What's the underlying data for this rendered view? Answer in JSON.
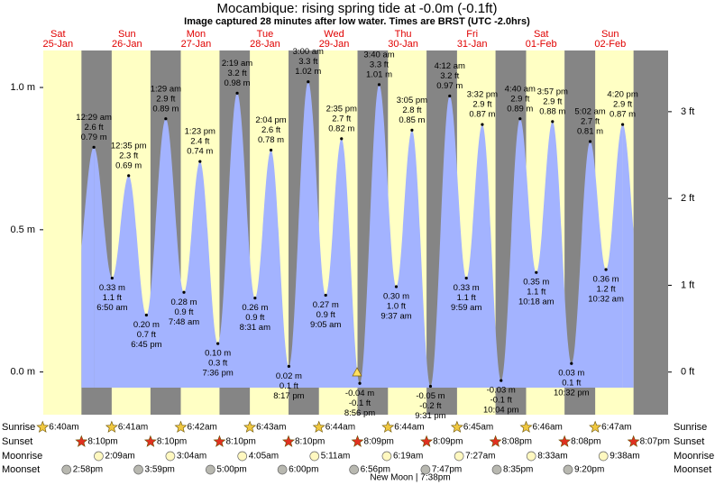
{
  "chart_data": {
    "type": "area",
    "title": "Mocambique: rising  spring tide at -0.0m (-0.1ft)",
    "subtitle": "Image captured 28 minutes after low water. Times are BRST (UTC -2.0hrs)",
    "ylim": [
      -0.15,
      1.13
    ],
    "yticks": [
      {
        "value": 0,
        "label": "0.0 m"
      },
      {
        "value": 0.5,
        "label": "0.5 m"
      },
      {
        "value": 1,
        "label": "1.0 m"
      }
    ],
    "y2lim": [
      -0.491,
      3.705
    ],
    "y2ticks": [
      {
        "value": 0,
        "label": "0 ft"
      },
      {
        "value": 1,
        "label": "1 ft"
      },
      {
        "value": 2,
        "label": "2 ft"
      },
      {
        "value": 3,
        "label": "3 ft"
      }
    ],
    "color": "#a3b3ff",
    "day_color": "#ffffc4",
    "night_color": "#858585",
    "row_labels": {
      "sunrise": "Sunrise",
      "sunset": "Sunset",
      "moonrise": "Moonrise",
      "moonset": "Moonset"
    },
    "new_moon": "New Moon | 7:38pm",
    "days": [
      {
        "weekday": "Sat",
        "date": "25-Jan",
        "sunrise": "6:40am",
        "sunset": "8:10pm",
        "moonrise": null,
        "moonset": "2:58pm",
        "tides": []
      },
      {
        "weekday": "Sun",
        "date": "26-Jan",
        "sunrise": "6:41am",
        "sunset": "8:10pm",
        "moonrise": "2:09am",
        "moonset": "3:59pm",
        "tides": [
          {
            "time": "12:29 am",
            "height_m": 0.79,
            "label_m": "0.79 m",
            "label_ft": "2.6 ft"
          },
          {
            "time": "6:50 am",
            "height_m": 0.33,
            "label_m": "0.33 m",
            "label_ft": "1.1 ft"
          },
          {
            "time": "12:35 pm",
            "height_m": 0.69,
            "label_m": "0.69 m",
            "label_ft": "2.3 ft"
          },
          {
            "time": "6:45 pm",
            "height_m": 0.2,
            "label_m": "0.20 m",
            "label_ft": "0.7 ft"
          }
        ]
      },
      {
        "weekday": "Mon",
        "date": "27-Jan",
        "sunrise": "6:42am",
        "sunset": "8:10pm",
        "moonrise": "3:04am",
        "moonset": "5:00pm",
        "tides": [
          {
            "time": "1:29 am",
            "height_m": 0.89,
            "label_m": "0.89 m",
            "label_ft": "2.9 ft"
          },
          {
            "time": "7:48 am",
            "height_m": 0.28,
            "label_m": "0.28 m",
            "label_ft": "0.9 ft"
          },
          {
            "time": "1:23 pm",
            "height_m": 0.74,
            "label_m": "0.74 m",
            "label_ft": "2.4 ft"
          },
          {
            "time": "7:36 pm",
            "height_m": 0.1,
            "label_m": "0.10 m",
            "label_ft": "0.3 ft"
          }
        ]
      },
      {
        "weekday": "Tue",
        "date": "28-Jan",
        "sunrise": "6:43am",
        "sunset": "8:10pm",
        "moonrise": "4:05am",
        "moonset": "6:00pm",
        "tides": [
          {
            "time": "2:19 am",
            "height_m": 0.98,
            "label_m": "0.98 m",
            "label_ft": "3.2 ft"
          },
          {
            "time": "8:31 am",
            "height_m": 0.26,
            "label_m": "0.26 m",
            "label_ft": "0.9 ft"
          },
          {
            "time": "2:04 pm",
            "height_m": 0.78,
            "label_m": "0.78 m",
            "label_ft": "2.6 ft"
          },
          {
            "time": "8:17 pm",
            "height_m": 0.02,
            "label_m": "0.02 m",
            "label_ft": "0.1 ft"
          }
        ]
      },
      {
        "weekday": "Wed",
        "date": "29-Jan",
        "sunrise": "6:44am",
        "sunset": "8:09pm",
        "moonrise": "5:11am",
        "moonset": "6:56pm",
        "tides": [
          {
            "time": "3:00 am",
            "height_m": 1.02,
            "label_m": "1.02 m",
            "label_ft": "3.3 ft"
          },
          {
            "time": "9:05 am",
            "height_m": 0.27,
            "label_m": "0.27 m",
            "label_ft": "0.9 ft"
          },
          {
            "time": "2:35 pm",
            "height_m": 0.82,
            "label_m": "0.82 m",
            "label_ft": "2.7 ft"
          },
          {
            "time": "8:56 pm",
            "height_m": -0.04,
            "label_m": "-0.04 m",
            "label_ft": "-0.1 ft"
          }
        ]
      },
      {
        "weekday": "Thu",
        "date": "30-Jan",
        "sunrise": "6:44am",
        "sunset": "8:09pm",
        "moonrise": "6:19am",
        "moonset": "7:47pm",
        "tides": [
          {
            "time": "3:40 am",
            "height_m": 1.01,
            "label_m": "1.01 m",
            "label_ft": "3.3 ft"
          },
          {
            "time": "9:37 am",
            "height_m": 0.3,
            "label_m": "0.30 m",
            "label_ft": "1.0 ft"
          },
          {
            "time": "3:05 pm",
            "height_m": 0.85,
            "label_m": "0.85 m",
            "label_ft": "2.8 ft"
          },
          {
            "time": "9:31 pm",
            "height_m": -0.05,
            "label_m": "-0.05 m",
            "label_ft": "-0.2 ft"
          }
        ]
      },
      {
        "weekday": "Fri",
        "date": "31-Jan",
        "sunrise": "6:45am",
        "sunset": "8:08pm",
        "moonrise": "7:27am",
        "moonset": "8:35pm",
        "tides": [
          {
            "time": "4:12 am",
            "height_m": 0.97,
            "label_m": "0.97 m",
            "label_ft": "3.2 ft"
          },
          {
            "time": "9:59 am",
            "height_m": 0.33,
            "label_m": "0.33 m",
            "label_ft": "1.1 ft"
          },
          {
            "time": "3:32 pm",
            "height_m": 0.87,
            "label_m": "0.87 m",
            "label_ft": "2.9 ft"
          },
          {
            "time": "10:04 pm",
            "height_m": -0.03,
            "label_m": "-0.03 m",
            "label_ft": "-0.1 ft"
          }
        ]
      },
      {
        "weekday": "Sat",
        "date": "01-Feb",
        "sunrise": "6:46am",
        "sunset": "8:08pm",
        "moonrise": "8:33am",
        "moonset": "9:20pm",
        "tides": [
          {
            "time": "4:40 am",
            "height_m": 0.89,
            "label_m": "0.89 m",
            "label_ft": "2.9 ft"
          },
          {
            "time": "10:18 am",
            "height_m": 0.35,
            "label_m": "0.35 m",
            "label_ft": "1.1 ft"
          },
          {
            "time": "3:57 pm",
            "height_m": 0.88,
            "label_m": "0.88 m",
            "label_ft": "2.9 ft"
          },
          {
            "time": "10:32 pm",
            "height_m": 0.03,
            "label_m": "0.03 m",
            "label_ft": "0.1 ft"
          }
        ]
      },
      {
        "weekday": "Sun",
        "date": "02-Feb",
        "sunrise": "6:47am",
        "sunset": "8:07pm",
        "moonrise": "9:38am",
        "moonset": null,
        "tides": [
          {
            "time": "5:02 am",
            "height_m": 0.81,
            "label_m": "0.81 m",
            "label_ft": "2.7 ft"
          },
          {
            "time": "10:32 am",
            "height_m": 0.36,
            "label_m": "0.36 m",
            "label_ft": "1.2 ft"
          },
          {
            "time": "4:20 pm",
            "height_m": 0.87,
            "label_m": "0.87 m",
            "label_ft": "2.9 ft"
          }
        ]
      }
    ]
  }
}
